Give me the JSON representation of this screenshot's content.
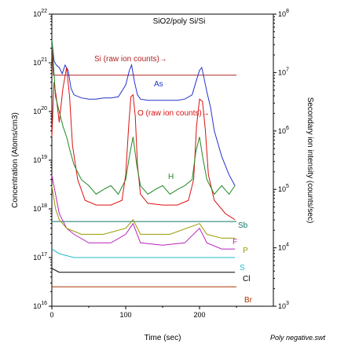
{
  "chart_data": {
    "type": "line",
    "title": "SiO2/poly Si/Si",
    "xlabel": "Time (sec)",
    "ylabel": "Concentration (Atoms/cm3)",
    "ylabel_right": "Secondary ion intensity (counts/sec)",
    "footer": "Poly negative.swt",
    "xlim": [
      0,
      300
    ],
    "ylim": [
      1e+16,
      1e+22
    ],
    "ylim_right": [
      1000,
      100000000
    ],
    "yscale": "log",
    "grid": false,
    "x_ticks": [
      "0",
      "100",
      "200"
    ],
    "y_ticks": [
      {
        "base": "10",
        "exp": "16",
        "value": 1e+16
      },
      {
        "base": "10",
        "exp": "17",
        "value": 1e+17
      },
      {
        "base": "10",
        "exp": "18",
        "value": 1e+18
      },
      {
        "base": "10",
        "exp": "19",
        "value": 1e+19
      },
      {
        "base": "10",
        "exp": "20",
        "value": 1e+20
      },
      {
        "base": "10",
        "exp": "21",
        "value": 1e+21
      },
      {
        "base": "10",
        "exp": "22",
        "value": 1e+22
      }
    ],
    "y_ticks_right": [
      {
        "base": "10",
        "exp": "3",
        "value": 1000
      },
      {
        "base": "10",
        "exp": "4",
        "value": 10000
      },
      {
        "base": "10",
        "exp": "5",
        "value": 100000
      },
      {
        "base": "10",
        "exp": "6",
        "value": 1000000
      },
      {
        "base": "10",
        "exp": "7",
        "value": 10000000
      },
      {
        "base": "10",
        "exp": "8",
        "value": 100000000
      }
    ],
    "labels": [
      {
        "text": "Si (raw ion counts)→",
        "color": "#b22222"
      },
      {
        "text": "As",
        "color": "#2233cc"
      },
      {
        "text": "O (raw ion counts)→",
        "color": "#dd1111"
      },
      {
        "text": "H",
        "color": "#228822"
      },
      {
        "text": "Sb",
        "color": "#117766"
      },
      {
        "text": "F",
        "color": "#bb22bb"
      },
      {
        "text": "P",
        "color": "#999900"
      },
      {
        "text": "S",
        "color": "#22bbcc"
      },
      {
        "text": "Cl",
        "color": "#000000"
      },
      {
        "text": "Br",
        "color": "#aa3300"
      }
    ],
    "series": [
      {
        "name": "Si (raw ion counts)",
        "color": "#b22222",
        "axis": "right",
        "x": [
          0,
          2,
          5,
          10,
          250
        ],
        "y": [
          30000000,
          9000000,
          9000000,
          9000000,
          9000000
        ]
      },
      {
        "name": "As",
        "color": "#2233cc",
        "axis": "left",
        "x": [
          0,
          3,
          6,
          10,
          14,
          18,
          22,
          26,
          30,
          40,
          50,
          60,
          70,
          80,
          90,
          100,
          105,
          108,
          112,
          116,
          120,
          130,
          140,
          150,
          160,
          170,
          180,
          190,
          195,
          200,
          203,
          206,
          210,
          215,
          220,
          230,
          240,
          248
        ],
        "y": [
          3e+21,
          1.1e+21,
          9e+20,
          8e+20,
          6e+20,
          9e+20,
          7e+20,
          3e+20,
          2.2e+20,
          1.9e+20,
          1.8e+20,
          1.8e+20,
          1.9e+20,
          1.9e+20,
          2e+20,
          3.5e+20,
          7e+20,
          9e+20,
          4e+20,
          2.2e+20,
          1.8e+20,
          1.7e+20,
          1.7e+20,
          1.7e+20,
          1.7e+20,
          1.7e+20,
          1.8e+20,
          2.2e+20,
          4e+20,
          7e+20,
          8e+20,
          5e+20,
          2.5e+20,
          1.2e+20,
          4e+19,
          1.2e+19,
          5e+18,
          3e+18
        ]
      },
      {
        "name": "O (raw ion counts)",
        "color": "#dd1111",
        "axis": "left",
        "x": [
          0,
          3,
          6,
          10,
          15,
          20,
          24,
          28,
          35,
          45,
          60,
          80,
          95,
          100,
          104,
          107,
          110,
          113,
          116,
          120,
          130,
          150,
          170,
          185,
          192,
          196,
          200,
          204,
          208,
          212,
          220,
          235,
          248
        ],
        "y": [
          3e+19,
          4e+20,
          2e+20,
          6e+19,
          3e+20,
          8e+20,
          2e+20,
          2e+19,
          4e+18,
          1.5e+18,
          1.2e+18,
          1.2e+18,
          1.5e+18,
          5e+18,
          5e+19,
          2e+20,
          2.2e+20,
          8e+19,
          8e+18,
          2e+18,
          1.3e+18,
          1.2e+18,
          1.2e+18,
          1.5e+18,
          4e+18,
          5e+19,
          1.8e+20,
          1.6e+20,
          4e+19,
          5e+18,
          1.5e+18,
          8e+17,
          6e+17
        ]
      },
      {
        "name": "H",
        "color": "#228822",
        "axis": "left",
        "x": [
          0,
          5,
          10,
          15,
          20,
          25,
          30,
          40,
          50,
          60,
          70,
          80,
          90,
          100,
          105,
          110,
          115,
          120,
          130,
          140,
          150,
          160,
          170,
          180,
          190,
          195,
          200,
          205,
          210,
          220,
          230,
          240,
          248
        ],
        "y": [
          3e+21,
          2e+20,
          1e+20,
          5e+19,
          3e+19,
          1.5e+19,
          8e+18,
          4e+18,
          3e+18,
          2e+18,
          2.5e+18,
          3e+18,
          2e+18,
          4e+18,
          1.2e+19,
          3e+19,
          8e+18,
          3e+18,
          2e+18,
          2.5e+18,
          3e+18,
          2e+18,
          2.5e+18,
          3e+18,
          4e+18,
          1.5e+19,
          3e+19,
          1e+19,
          4e+18,
          2e+18,
          3e+18,
          2e+18,
          3e+18
        ]
      },
      {
        "name": "Sb",
        "color": "#117766",
        "axis": "left",
        "x": [
          0,
          250
        ],
        "y": [
          5.5e+17,
          5.5e+17
        ]
      },
      {
        "name": "F",
        "color": "#bb22bb",
        "axis": "left",
        "x": [
          0,
          5,
          10,
          20,
          30,
          50,
          80,
          100,
          110,
          120,
          150,
          180,
          200,
          210,
          230,
          248
        ],
        "y": [
          5e+18,
          2e+18,
          8e+17,
          4e+17,
          3e+17,
          2e+17,
          2e+17,
          3e+17,
          5e+17,
          2e+17,
          1.8e+17,
          2e+17,
          4e+17,
          2e+17,
          1.5e+17,
          1.5e+17
        ]
      },
      {
        "name": "P",
        "color": "#999900",
        "axis": "left",
        "x": [
          0,
          5,
          10,
          20,
          40,
          70,
          100,
          110,
          120,
          160,
          200,
          210,
          230,
          248
        ],
        "y": [
          3e+18,
          1e+18,
          6e+17,
          4e+17,
          3e+17,
          3e+17,
          4e+17,
          6e+17,
          3e+17,
          3e+17,
          5e+17,
          3e+17,
          2.5e+17,
          2.5e+17
        ]
      },
      {
        "name": "S",
        "color": "#22bbcc",
        "axis": "left",
        "x": [
          0,
          10,
          30,
          60,
          100,
          150,
          200,
          248
        ],
        "y": [
          1.5e+17,
          1.2e+17,
          1e+17,
          1e+17,
          1e+17,
          1e+17,
          1e+17,
          1e+17
        ]
      },
      {
        "name": "Cl",
        "color": "#000000",
        "axis": "left",
        "x": [
          0,
          10,
          30,
          60,
          100,
          150,
          200,
          248
        ],
        "y": [
          6e+16,
          5e+16,
          5e+16,
          5e+16,
          5e+16,
          5e+16,
          5e+16,
          5e+16
        ]
      },
      {
        "name": "Br",
        "color": "#aa3300",
        "axis": "left",
        "x": [
          0,
          250
        ],
        "y": [
          2.5e+16,
          2.5e+16
        ]
      }
    ]
  }
}
